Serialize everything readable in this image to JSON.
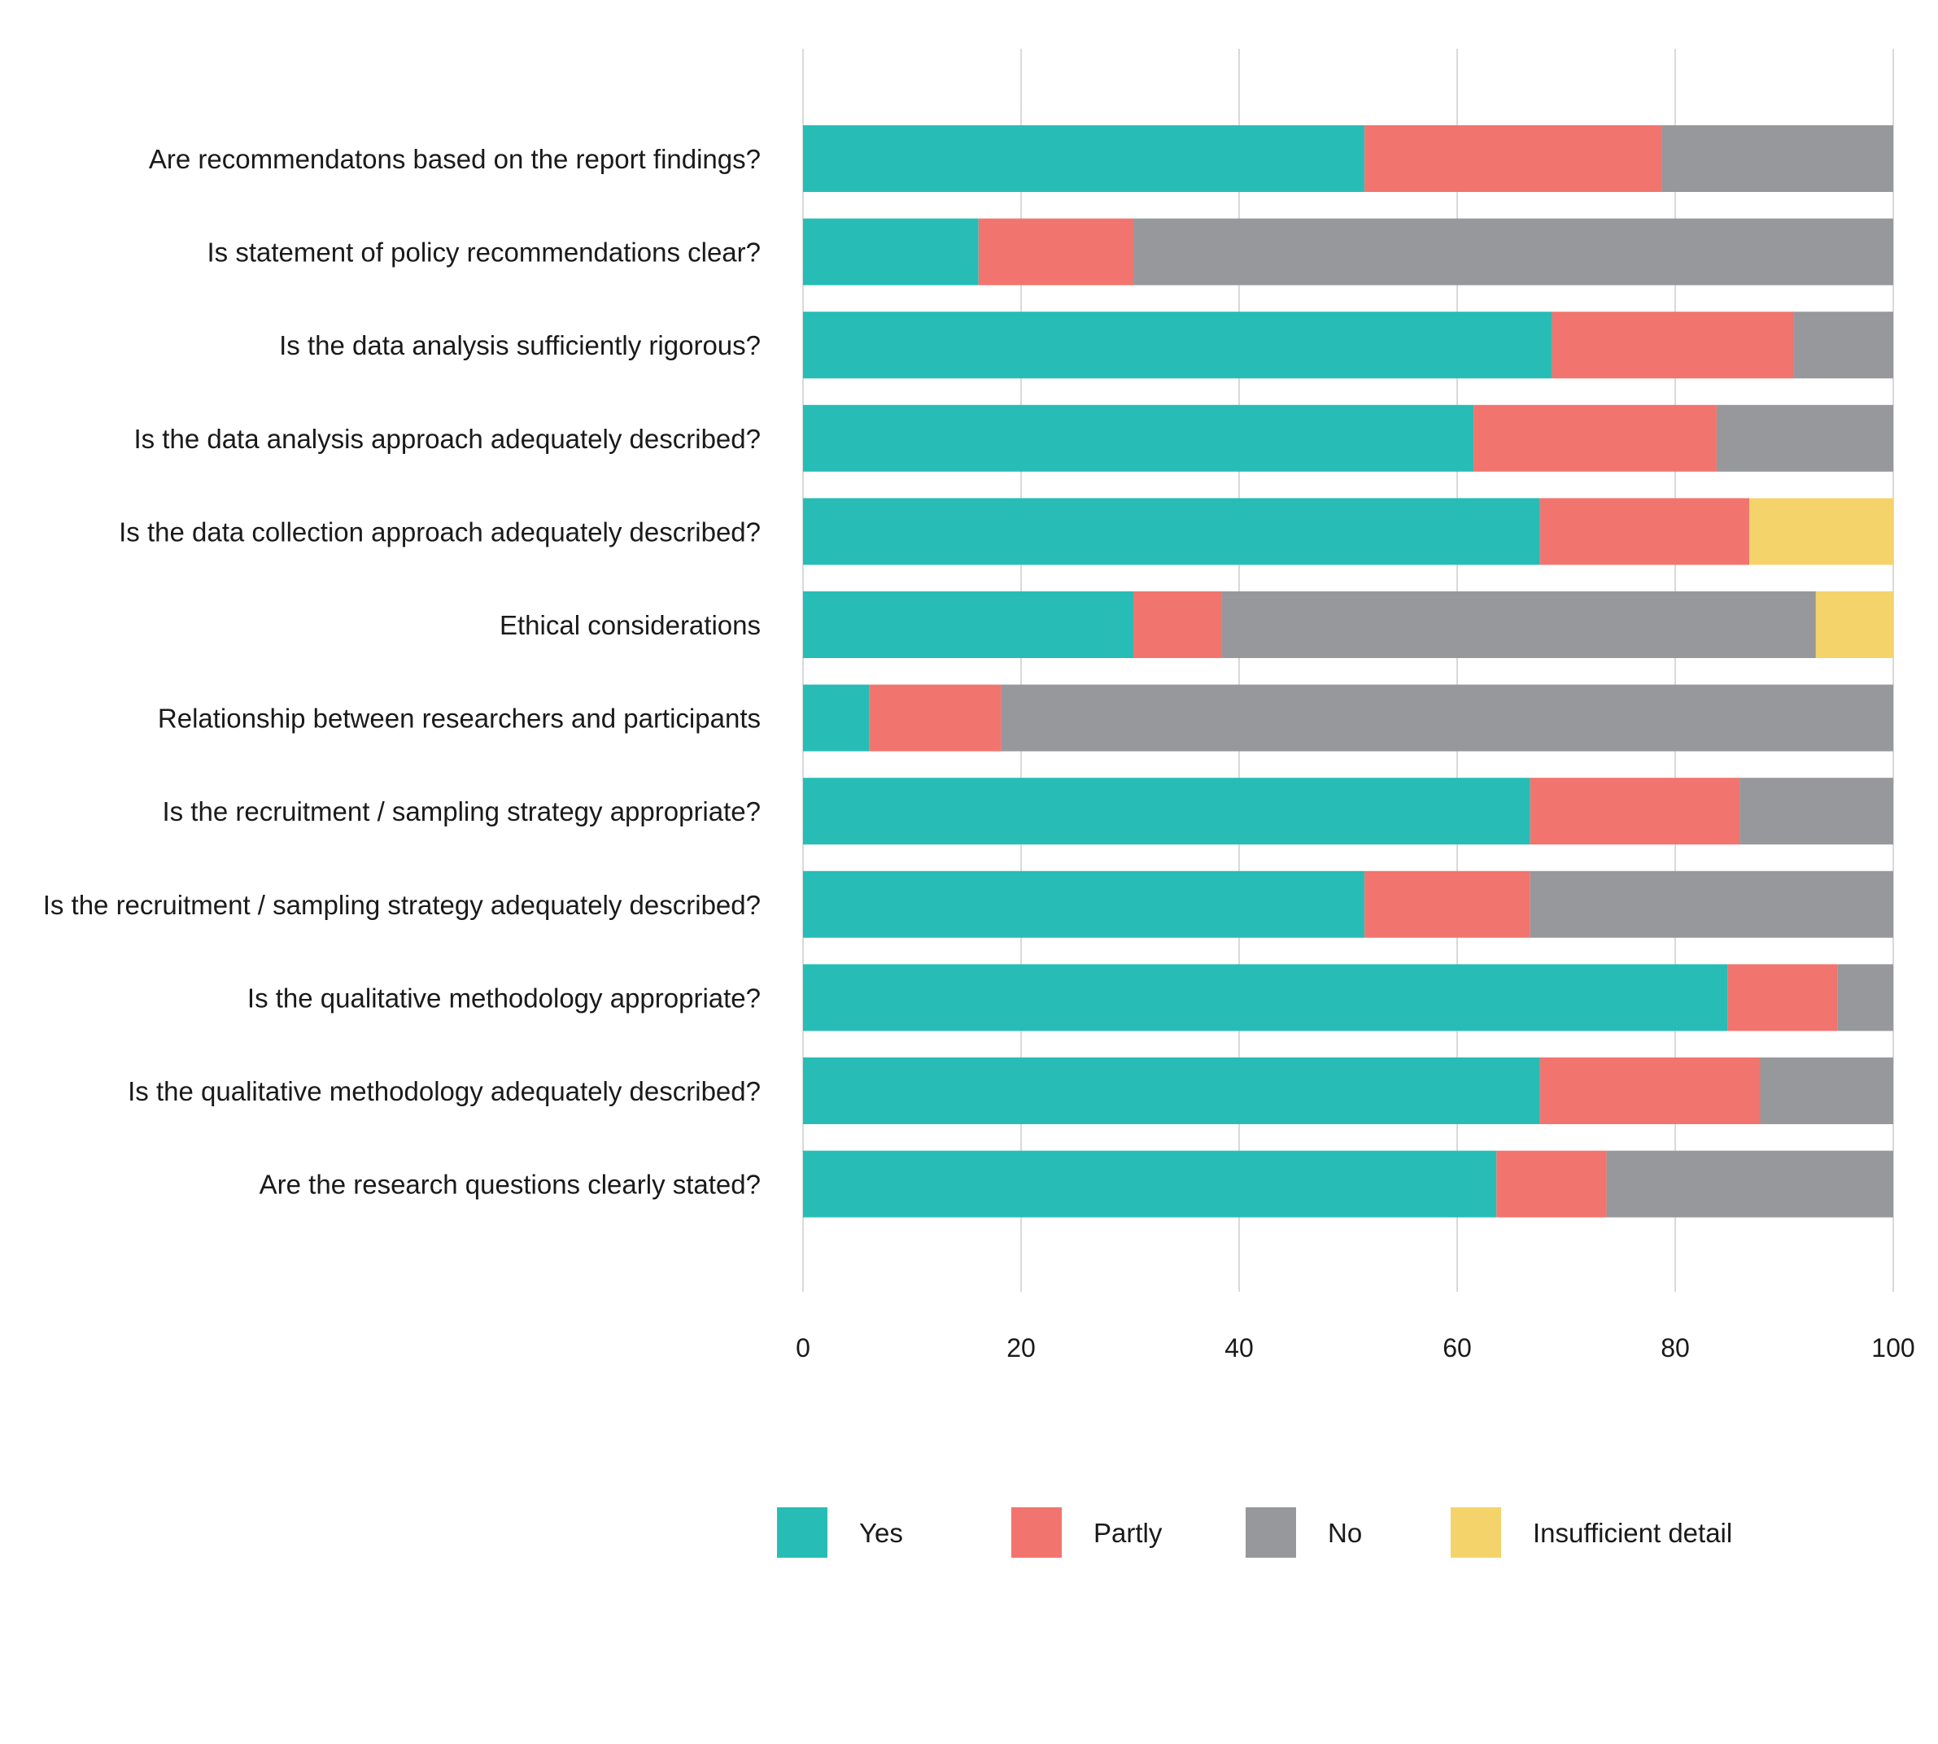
{
  "chart_data": {
    "type": "bar",
    "orientation": "horizontal",
    "stacked": true,
    "title": "",
    "xlabel": "",
    "ylabel": "",
    "xlim": [
      0,
      100
    ],
    "xticks": [
      "0",
      "20",
      "40",
      "60",
      "80",
      "100"
    ],
    "grid": true,
    "legend_position": "bottom",
    "categories": [
      "Are recommendatons based on the report findings?",
      "Is statement of policy recommendations clear?",
      "Is the data analysis sufficiently rigorous?",
      "Is the data analysis approach adequately described?",
      "Is the data collection approach adequately described?",
      "Ethical considerations",
      "Relationship between researchers and participants",
      "Is the recruitment / sampling strategy appropriate?",
      "Is the recruitment / sampling strategy adequately described?",
      "Is the qualitative methodology appropriate?",
      "Is the qualitative methodology adequately described?",
      "Are the research questions clearly stated?"
    ],
    "series": [
      {
        "name": "Yes",
        "color": "#27bdb6",
        "values": [
          51.5,
          16.1,
          68.7,
          61.5,
          67.6,
          30.3,
          6.1,
          66.7,
          51.5,
          84.8,
          67.6,
          63.6
        ]
      },
      {
        "name": "Partly",
        "color": "#f2746e",
        "values": [
          27.3,
          14.2,
          22.2,
          22.3,
          19.2,
          8.1,
          12.1,
          19.2,
          15.2,
          10.1,
          20.2,
          10.1
        ]
      },
      {
        "name": "No",
        "color": "#97989b",
        "values": [
          21.2,
          69.7,
          9.1,
          16.2,
          0,
          54.5,
          81.8,
          14.1,
          33.3,
          5.1,
          12.2,
          26.3
        ]
      },
      {
        "name": "Insufficient detail",
        "color": "#f4d46a",
        "values": [
          0,
          0,
          0,
          0,
          13.2,
          7.1,
          0,
          0,
          0,
          0,
          0,
          0
        ]
      }
    ]
  }
}
